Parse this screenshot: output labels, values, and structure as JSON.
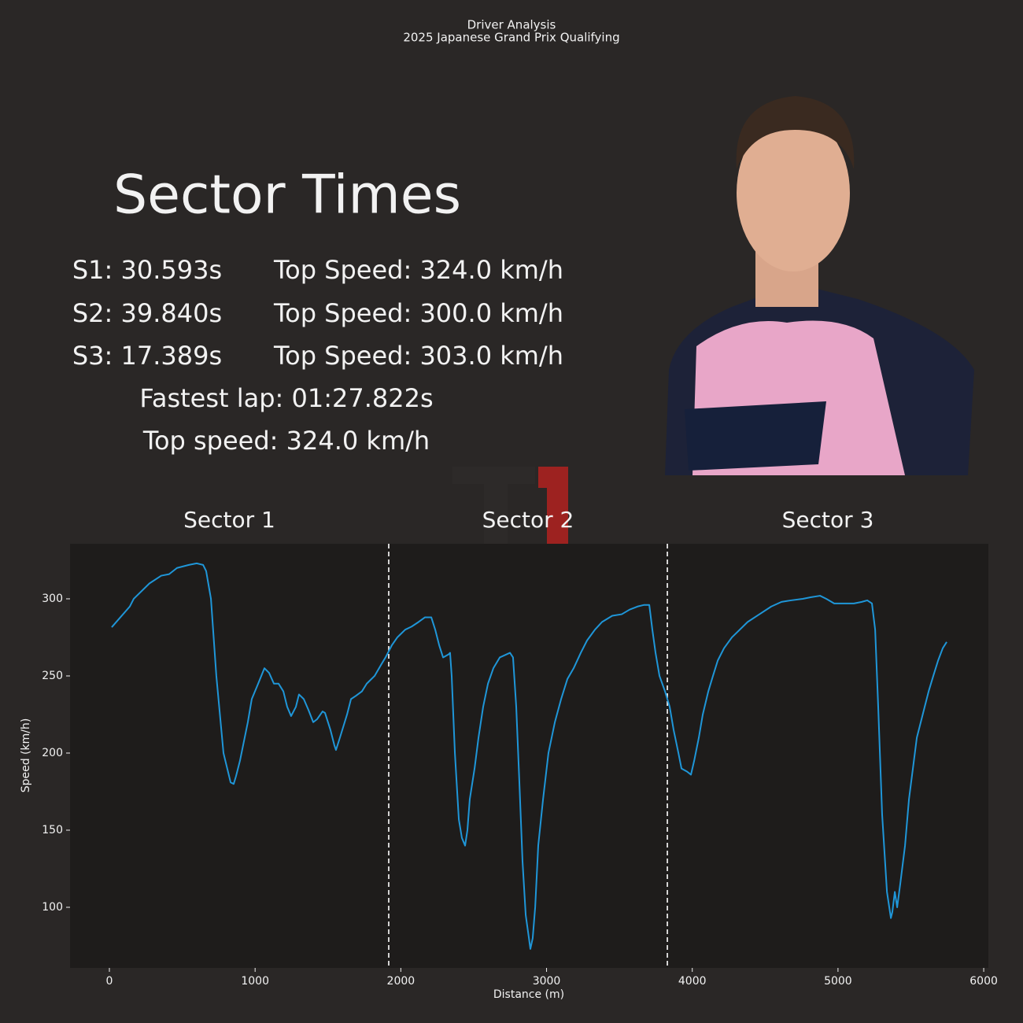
{
  "panel": {
    "heading": "Sector Times",
    "rows": [
      [
        "S1: 30.593s",
        "Top Speed: 324.0 km/h"
      ],
      [
        "S2: 39.840s",
        "Top Speed: 300.0 km/h"
      ],
      [
        "S3: 17.389s",
        "Top Speed: 303.0 km/h"
      ]
    ],
    "fastest_lap": "Fastest lap: 01:27.822s",
    "top_speed": "Top speed: 324.0 km/h"
  },
  "chart_data": {
    "type": "line",
    "title": "Driver Analysis",
    "subtitle": "2025 Japanese Grand Prix Qualifying",
    "x_label": "Distance (m)",
    "y_label": "Speed (km/h)",
    "color": "#1f96d8",
    "sectors": [
      "Sector 1",
      "Sector 2",
      "Sector 3"
    ],
    "sector_bounds": [
      1917,
      3829
    ],
    "xlim": [
      -270,
      6032
    ],
    "ylim": [
      60.7,
      335.7
    ],
    "xticks": [
      0,
      1000,
      2000,
      3000,
      4000,
      5000,
      6000
    ],
    "yticks": [
      100,
      150,
      200,
      250,
      300
    ],
    "x": [
      16,
      140,
      167,
      275,
      356,
      410,
      464,
      545,
      599,
      643,
      664,
      697,
      734,
      783,
      832,
      853,
      869,
      896,
      950,
      977,
      1021,
      1064,
      1096,
      1129,
      1161,
      1194,
      1220,
      1247,
      1280,
      1301,
      1334,
      1366,
      1399,
      1426,
      1463,
      1480,
      1517,
      1544,
      1555,
      1582,
      1631,
      1658,
      1690,
      1733,
      1766,
      1820,
      1863,
      1895,
      1939,
      1976,
      2030,
      2074,
      2122,
      2166,
      2209,
      2236,
      2263,
      2290,
      2328,
      2338,
      2349,
      2371,
      2398,
      2419,
      2441,
      2457,
      2473,
      2506,
      2533,
      2565,
      2598,
      2635,
      2679,
      2749,
      2770,
      2792,
      2814,
      2835,
      2857,
      2879,
      2889,
      2905,
      2922,
      2943,
      2976,
      3013,
      3057,
      3100,
      3143,
      3186,
      3235,
      3278,
      3332,
      3381,
      3451,
      3516,
      3570,
      3624,
      3667,
      3705,
      3726,
      3748,
      3775,
      3813,
      3845,
      3872,
      3905,
      3926,
      3964,
      3991,
      4013,
      4045,
      4072,
      4110,
      4142,
      4175,
      4218,
      4272,
      4326,
      4380,
      4461,
      4542,
      4612,
      4677,
      4758,
      4812,
      4877,
      4920,
      4974,
      5109,
      5163,
      5201,
      5233,
      5255,
      5276,
      5303,
      5336,
      5363,
      5373,
      5390,
      5406,
      5427,
      5460,
      5487,
      5514,
      5541,
      5568,
      5595,
      5622,
      5654,
      5687,
      5719,
      5746
    ],
    "values": [
      281.6,
      295,
      300,
      310,
      315,
      316,
      320,
      322,
      323,
      322,
      318,
      300,
      250,
      200,
      181,
      180,
      185,
      195,
      220,
      235,
      245,
      255,
      252,
      245,
      245,
      240,
      230,
      224,
      230,
      238,
      235,
      228,
      220,
      222,
      227,
      226,
      215,
      205,
      202,
      210,
      225,
      235,
      237,
      240,
      245,
      250,
      257,
      262,
      270,
      275,
      280,
      282,
      285,
      288,
      288,
      280,
      270,
      262,
      264,
      265,
      250,
      200,
      157,
      145,
      140,
      150,
      170,
      190,
      210,
      230,
      245,
      255,
      262,
      265,
      262,
      230,
      180,
      130,
      95,
      80,
      73,
      80,
      100,
      140,
      170,
      200,
      220,
      235,
      248,
      255,
      265,
      273,
      280,
      285,
      289,
      290,
      293,
      295,
      296,
      296,
      280,
      265,
      250,
      240,
      230,
      215,
      200,
      190,
      188,
      186,
      195,
      210,
      225,
      240,
      250,
      260,
      268,
      275,
      280,
      285,
      290,
      295,
      298,
      299,
      300,
      301,
      302,
      300,
      297,
      297,
      298,
      299,
      297,
      280,
      230,
      160,
      110,
      93,
      97,
      110,
      100,
      115,
      140,
      170,
      190,
      210,
      220,
      230,
      240,
      250,
      260,
      268,
      272
    ]
  }
}
